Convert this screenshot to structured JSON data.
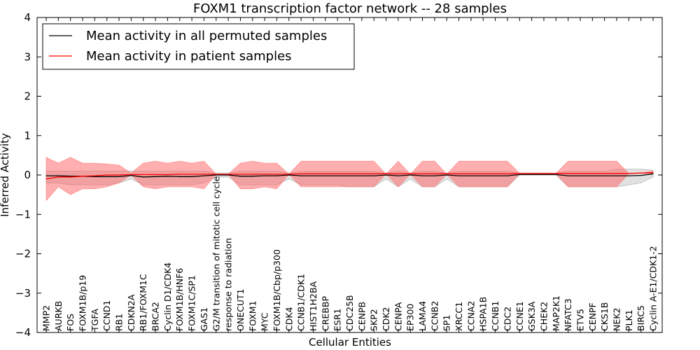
{
  "chart_data": {
    "type": "line",
    "title": "FOXM1 transcription factor network -- 28 samples",
    "xlabel": "Cellular Entities",
    "ylabel": "Inferred Activity",
    "ylim": [
      -4,
      4
    ],
    "yticks": [
      -4,
      -3,
      -2,
      -1,
      0,
      1,
      2,
      3,
      4
    ],
    "ytick_labels": [
      "−4",
      "−3",
      "−2",
      "−1",
      "0",
      "1",
      "2",
      "3",
      "4"
    ],
    "legend_position": "top-left",
    "grid": false,
    "categories": [
      "MMP2",
      "AURKB",
      "FOS",
      "FOXM1B/p19",
      "TGFA",
      "CCND1",
      "RB1",
      "CDKN2A",
      "RB1/FOXM1C",
      "BRCA2",
      "Cyclin D1/CDK4",
      "FOXM1B/HNF6",
      "FOXM1C/SP1",
      "GAS1",
      "G2/M transition of mitotic cell cycle",
      "response to radiation",
      "ONECUT1",
      "FOXM1",
      "MYC",
      "FOXM1B/Cbp/p300",
      "CDK4",
      "CCNB1/CDK1",
      "HIST1H2BA",
      "CREBBP",
      "ESR1",
      "CDC25B",
      "CENPB",
      "SKP2",
      "CDK2",
      "CENPA",
      "EP300",
      "LAMA4",
      "CCNB2",
      "SP1",
      "XRCC1",
      "CCNA2",
      "HSPA1B",
      "CCNB1",
      "CDC2",
      "CCNE1",
      "GSK3A",
      "CHEK2",
      "MAP2K1",
      "NFATC3",
      "ETV5",
      "CENPF",
      "CKS1B",
      "NEK2",
      "PLK1",
      "BIRC5",
      "Cyclin A-E1/CDK1-2"
    ],
    "series": [
      {
        "name": "Mean activity in all permuted samples",
        "color": "#000000",
        "values": [
          -0.02,
          -0.02,
          -0.03,
          -0.03,
          -0.04,
          -0.04,
          -0.04,
          -0.01,
          -0.05,
          -0.04,
          -0.03,
          -0.04,
          -0.04,
          -0.02,
          0.0,
          0.0,
          -0.03,
          -0.03,
          -0.02,
          -0.02,
          0.0,
          -0.02,
          -0.02,
          -0.02,
          -0.02,
          -0.02,
          -0.02,
          -0.02,
          0.0,
          -0.02,
          0.0,
          -0.02,
          -0.02,
          0.0,
          -0.02,
          -0.02,
          -0.02,
          -0.02,
          -0.02,
          0.01,
          0.01,
          0.01,
          0.01,
          -0.02,
          -0.02,
          -0.02,
          -0.02,
          -0.02,
          -0.02,
          -0.01,
          0.03
        ],
        "band": {
          "upper": [
            0.1,
            0.1,
            0.1,
            0.1,
            0.1,
            0.1,
            0.1,
            0.1,
            0.1,
            0.1,
            0.1,
            0.1,
            0.1,
            0.1,
            0.05,
            0.05,
            0.1,
            0.1,
            0.1,
            0.1,
            0.05,
            0.1,
            0.1,
            0.1,
            0.1,
            0.1,
            0.1,
            0.1,
            0.05,
            0.1,
            0.05,
            0.1,
            0.1,
            0.05,
            0.1,
            0.1,
            0.1,
            0.1,
            0.1,
            0.05,
            0.05,
            0.05,
            0.05,
            0.1,
            0.1,
            0.1,
            0.1,
            0.15,
            0.15,
            0.15,
            0.12
          ],
          "lower": [
            -0.2,
            -0.2,
            -0.25,
            -0.25,
            -0.25,
            -0.25,
            -0.2,
            -0.1,
            -0.25,
            -0.25,
            -0.25,
            -0.25,
            -0.25,
            -0.2,
            -0.05,
            -0.05,
            -0.25,
            -0.25,
            -0.25,
            -0.25,
            -0.1,
            -0.25,
            -0.25,
            -0.25,
            -0.25,
            -0.3,
            -0.3,
            -0.3,
            -0.1,
            -0.3,
            -0.1,
            -0.3,
            -0.3,
            -0.1,
            -0.3,
            -0.3,
            -0.3,
            -0.3,
            -0.3,
            0.0,
            0.0,
            0.0,
            0.0,
            -0.3,
            -0.3,
            -0.3,
            -0.3,
            -0.3,
            -0.25,
            -0.2,
            -0.05
          ]
        }
      },
      {
        "name": "Mean activity in patient samples",
        "color": "#ff0000",
        "values": [
          -0.1,
          -0.05,
          -0.05,
          -0.03,
          -0.02,
          0.0,
          0.0,
          0.01,
          0.01,
          0.01,
          0.01,
          0.02,
          0.02,
          0.02,
          0.02,
          0.02,
          0.02,
          0.02,
          0.02,
          0.02,
          0.02,
          0.03,
          0.03,
          0.03,
          0.03,
          0.03,
          0.03,
          0.03,
          0.03,
          0.03,
          0.03,
          0.03,
          0.03,
          0.03,
          0.03,
          0.03,
          0.03,
          0.03,
          0.03,
          0.04,
          0.04,
          0.04,
          0.04,
          0.04,
          0.04,
          0.04,
          0.04,
          0.04,
          0.04,
          0.05,
          0.06
        ],
        "band": {
          "upper": [
            0.45,
            0.3,
            0.45,
            0.3,
            0.3,
            0.28,
            0.25,
            0.05,
            0.3,
            0.35,
            0.3,
            0.35,
            0.3,
            0.35,
            0.02,
            0.02,
            0.3,
            0.35,
            0.3,
            0.3,
            0.02,
            0.35,
            0.35,
            0.35,
            0.35,
            0.35,
            0.35,
            0.35,
            0.02,
            0.35,
            0.02,
            0.35,
            0.35,
            0.02,
            0.35,
            0.35,
            0.35,
            0.35,
            0.35,
            0.04,
            0.04,
            0.04,
            0.04,
            0.35,
            0.35,
            0.35,
            0.35,
            0.35,
            0.04,
            0.05,
            0.1
          ],
          "lower": [
            -0.65,
            -0.3,
            -0.5,
            -0.35,
            -0.35,
            -0.3,
            -0.2,
            0.0,
            -0.3,
            -0.35,
            -0.3,
            -0.3,
            -0.3,
            -0.35,
            0.02,
            0.02,
            -0.35,
            -0.35,
            -0.3,
            -0.35,
            0.02,
            -0.3,
            -0.3,
            -0.3,
            -0.3,
            -0.3,
            -0.3,
            -0.3,
            0.02,
            -0.3,
            0.02,
            -0.3,
            -0.3,
            0.02,
            -0.3,
            -0.3,
            -0.3,
            -0.3,
            -0.3,
            0.04,
            0.04,
            0.04,
            0.04,
            -0.3,
            -0.3,
            -0.3,
            -0.3,
            -0.3,
            0.04,
            0.05,
            0.04
          ]
        }
      }
    ]
  }
}
